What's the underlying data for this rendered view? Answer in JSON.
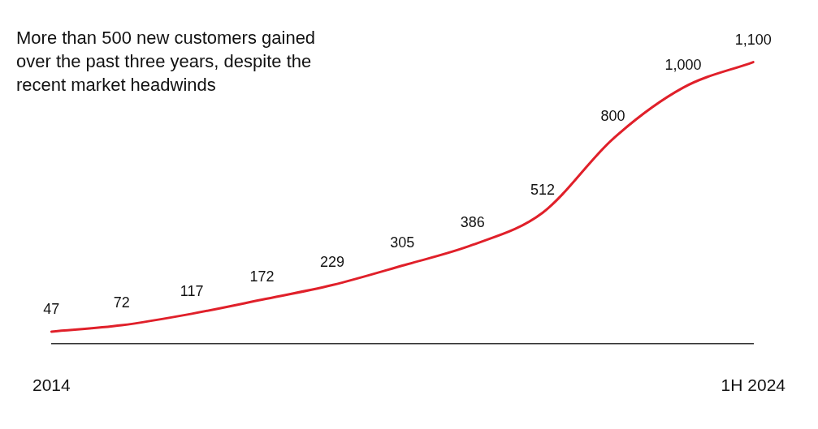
{
  "chart_data": {
    "type": "line",
    "categories": [
      "2014",
      null,
      null,
      null,
      null,
      null,
      null,
      null,
      null,
      null,
      "1H 2024"
    ],
    "series": [
      {
        "color": "#e0202a",
        "values": [
          47,
          72,
          117,
          172,
          229,
          305,
          386,
          512,
          800,
          1000,
          1100
        ],
        "value_labels": [
          "47",
          "72",
          "117",
          "172",
          "229",
          "305",
          "386",
          "512",
          "800",
          "1,000",
          "1,100"
        ]
      }
    ],
    "marker": "none",
    "line_style": "solid",
    "grid": false,
    "legend": false,
    "annotations": [
      "More than 500 new customers gained over the past three years, despite the recent market headwinds"
    ]
  }
}
